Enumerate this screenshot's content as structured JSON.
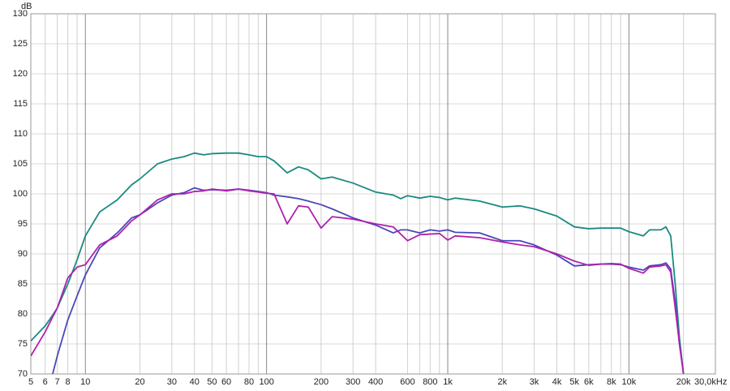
{
  "chart_data": {
    "type": "line",
    "y_label": "dB",
    "xscale": "log",
    "grid": true,
    "x": [
      5,
      6,
      6.6,
      7,
      8,
      9,
      10,
      12,
      15,
      18,
      20,
      25,
      30,
      35,
      40,
      45,
      50,
      60,
      70,
      80,
      90,
      100,
      110,
      130,
      150,
      170,
      200,
      230,
      300,
      400,
      500,
      550,
      600,
      700,
      800,
      900,
      1000,
      1100,
      1500,
      2000,
      2500,
      3000,
      4000,
      5000,
      6000,
      7000,
      8000,
      9000,
      10000,
      12000,
      13000,
      15000,
      16000,
      17000,
      18000,
      19000,
      20000
    ],
    "series": [
      {
        "color": "#1a8a80",
        "values": [
          75.5,
          78,
          79.8,
          81,
          85,
          89,
          93,
          97,
          99,
          101.5,
          102.5,
          105,
          105.8,
          106.2,
          106.8,
          106.5,
          106.7,
          106.8,
          106.8,
          106.5,
          106.2,
          106.2,
          105.5,
          103.5,
          104.5,
          104,
          102.5,
          102.8,
          101.8,
          100.3,
          99.8,
          99.2,
          99.7,
          99.3,
          99.6,
          99.4,
          99,
          99.3,
          98.8,
          97.8,
          98,
          97.5,
          96.3,
          94.5,
          94.2,
          94.3,
          94.3,
          94.3,
          93.7,
          93,
          94,
          94,
          94.5,
          93,
          85,
          76,
          70
        ]
      },
      {
        "color": "#4b47b8",
        "values": [
          null,
          null,
          70,
          73,
          79,
          83,
          86.5,
          91,
          93.5,
          96,
          96.5,
          98.5,
          99.8,
          100.2,
          101,
          100.6,
          100.7,
          100.6,
          100.8,
          100.6,
          100.4,
          100.2,
          99.8,
          99.5,
          99.2,
          98.8,
          98.2,
          97.5,
          96,
          94.8,
          93.5,
          94,
          94,
          93.5,
          94,
          93.8,
          94,
          93.6,
          93.5,
          92.2,
          92.2,
          91.5,
          89.8,
          88,
          88.2,
          88.3,
          88.3,
          88.2,
          87.8,
          87.3,
          88,
          88.2,
          88.5,
          87.5,
          82,
          75,
          70
        ]
      },
      {
        "color": "#b020b0",
        "values": [
          73,
          77,
          79.5,
          81,
          86,
          87.8,
          88.2,
          91.5,
          93,
          95.5,
          96.5,
          99,
          100,
          100,
          100.4,
          100.5,
          100.8,
          100.5,
          100.8,
          100.5,
          100.3,
          100.1,
          100,
          95,
          98,
          97.8,
          94.3,
          96.2,
          95.8,
          95,
          94.5,
          93.3,
          92.2,
          93.2,
          93.3,
          93.4,
          92.3,
          93,
          92.7,
          92,
          91.5,
          91.2,
          90,
          88.8,
          88.1,
          88.3,
          88.4,
          88.3,
          87.6,
          86.8,
          87.8,
          88,
          88.2,
          87,
          81,
          75,
          70
        ]
      }
    ],
    "xlim": [
      5,
      30000
    ],
    "ylim": [
      70,
      130
    ],
    "yticks": [
      70,
      75,
      80,
      85,
      90,
      95,
      100,
      105,
      110,
      115,
      120,
      125,
      130
    ],
    "xticks": [
      5,
      6,
      7,
      8,
      10,
      20,
      30,
      40,
      50,
      60,
      80,
      100,
      200,
      300,
      400,
      600,
      800,
      {
        "value": 1000,
        "label": "1k"
      },
      {
        "value": 2000,
        "label": "2k"
      },
      {
        "value": 3000,
        "label": "3k"
      },
      {
        "value": 4000,
        "label": "4k"
      },
      {
        "value": 5000,
        "label": "5k"
      },
      {
        "value": 6000,
        "label": "6k"
      },
      {
        "value": 8000,
        "label": "8k"
      },
      {
        "value": 10000,
        "label": "10k"
      },
      {
        "value": 20000,
        "label": "20k"
      },
      {
        "value": 30000,
        "label": "30,0kHz"
      }
    ],
    "xminor_ticks": [
      9,
      70,
      90,
      700,
      900,
      7000,
      9000
    ]
  }
}
